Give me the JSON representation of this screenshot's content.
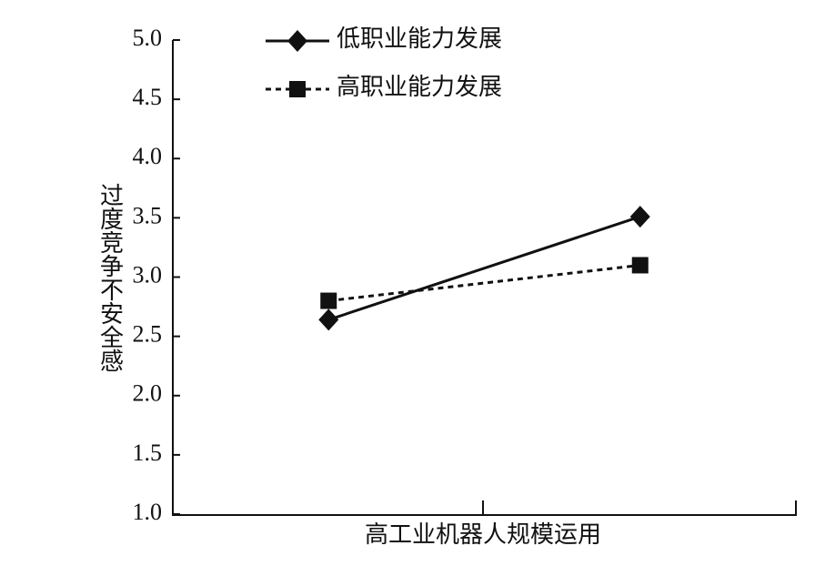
{
  "chart_data": {
    "type": "line",
    "x_label": "高工业机器人规模运用",
    "y_label": "过度竞争不安全感",
    "categories": [
      null,
      null
    ],
    "series": [
      {
        "name": "低职业能力发展",
        "color": "#111111",
        "line_style": "solid",
        "marker": "diamond",
        "values": [
          2.64,
          3.51
        ]
      },
      {
        "name": "高职业能力发展",
        "color": "#111111",
        "line_style": "dashed",
        "marker": "square",
        "values": [
          2.8,
          3.1
        ]
      }
    ],
    "ylim": [
      1.0,
      5.0
    ],
    "yticks": [
      {
        "value": 1.0,
        "label": "1.0"
      },
      {
        "value": 1.5,
        "label": "1.5"
      },
      {
        "value": 2.0,
        "label": "2.0"
      },
      {
        "value": 2.5,
        "label": "2.5"
      },
      {
        "value": 3.0,
        "label": "3.0"
      },
      {
        "value": 3.5,
        "label": "3.5"
      },
      {
        "value": 4.0,
        "label": "4.0"
      },
      {
        "value": 4.5,
        "label": "4.5"
      },
      {
        "value": 5.0,
        "label": "5.0"
      }
    ],
    "grid": false,
    "legend": "upper left"
  }
}
